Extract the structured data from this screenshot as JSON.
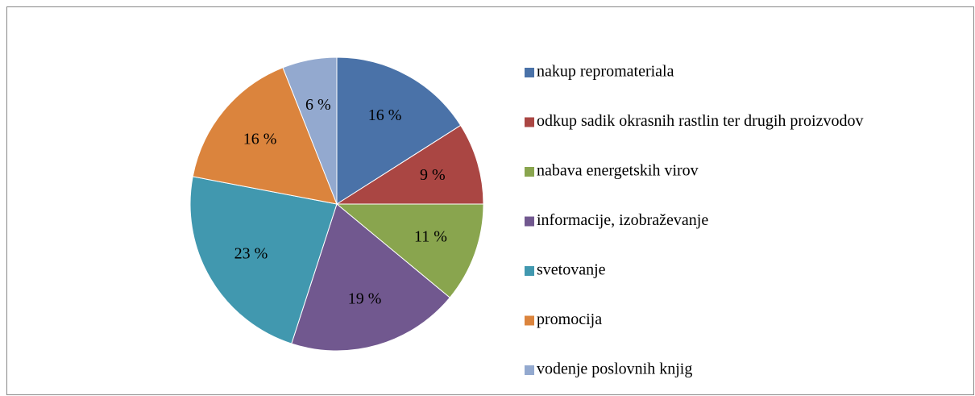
{
  "chart_data": {
    "type": "pie",
    "categories": [
      "nakup repromateriala",
      "odkup sadik okrasnih rastlin ter drugih proizvodov",
      "nabava energetskih virov",
      "informacije, izobraževanje",
      "svetovanje",
      "promocija",
      "vodenje poslovnih knjig"
    ],
    "values": [
      16,
      9,
      11,
      19,
      23,
      16,
      6
    ],
    "value_labels": [
      "16 %",
      "9 %",
      "11 %",
      "19 %",
      "23 %",
      "16 %",
      "6 %"
    ],
    "colors": [
      "#4a72a8",
      "#aa4643",
      "#89a54e",
      "#71588f",
      "#4198af",
      "#db843d",
      "#93a9cf"
    ],
    "legend": "right"
  }
}
